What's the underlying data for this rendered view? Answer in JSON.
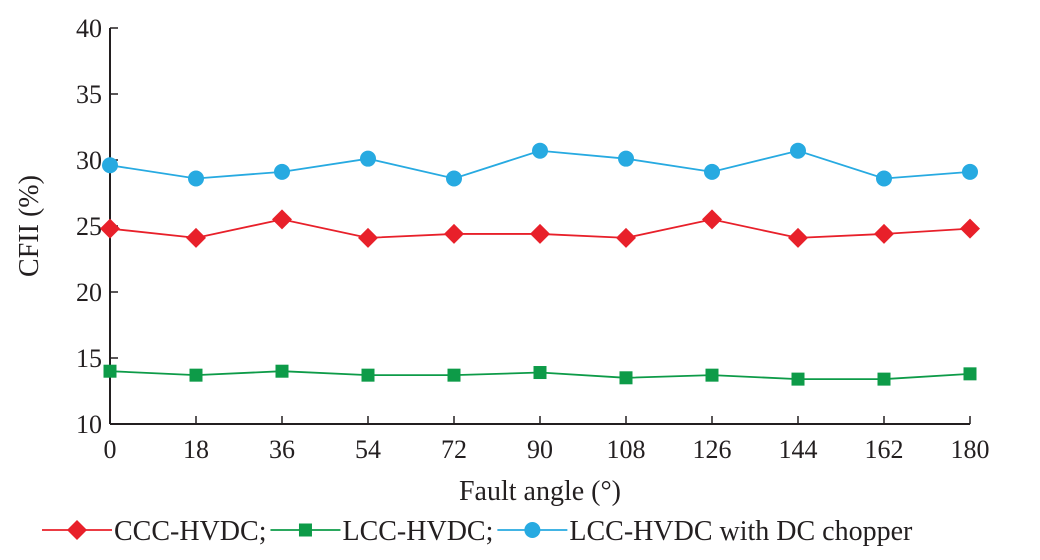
{
  "chart_data": {
    "type": "line",
    "x": [
      0,
      18,
      36,
      54,
      72,
      90,
      108,
      126,
      144,
      162,
      180
    ],
    "xticks": [
      "0",
      "18",
      "36",
      "54",
      "72",
      "90",
      "108",
      "126",
      "144",
      "162",
      "180"
    ],
    "yticks": [
      "10",
      "15",
      "20",
      "25",
      "30",
      "35",
      "40"
    ],
    "xlabel": "Fault angle (°)",
    "ylabel": "CFII (%)",
    "xlim": [
      0,
      180
    ],
    "ylim": [
      10,
      40
    ],
    "grid": false,
    "legend_position": "bottom",
    "series": [
      {
        "name": "CCC-HVDC;",
        "marker": "diamond",
        "color": "#e8202a",
        "values": [
          24.8,
          24.1,
          25.5,
          24.1,
          24.4,
          24.4,
          24.1,
          25.5,
          24.1,
          24.4,
          24.8
        ]
      },
      {
        "name": "LCC-HVDC;",
        "marker": "square",
        "color": "#0d9b48",
        "values": [
          14.0,
          13.7,
          14.0,
          13.7,
          13.7,
          13.9,
          13.5,
          13.7,
          13.4,
          13.4,
          13.8
        ]
      },
      {
        "name": "LCC-HVDC with DC chopper",
        "marker": "circle",
        "color": "#27aae1",
        "values": [
          29.6,
          28.6,
          29.1,
          30.1,
          28.6,
          30.7,
          30.1,
          29.1,
          30.7,
          28.6,
          29.1
        ]
      }
    ]
  }
}
